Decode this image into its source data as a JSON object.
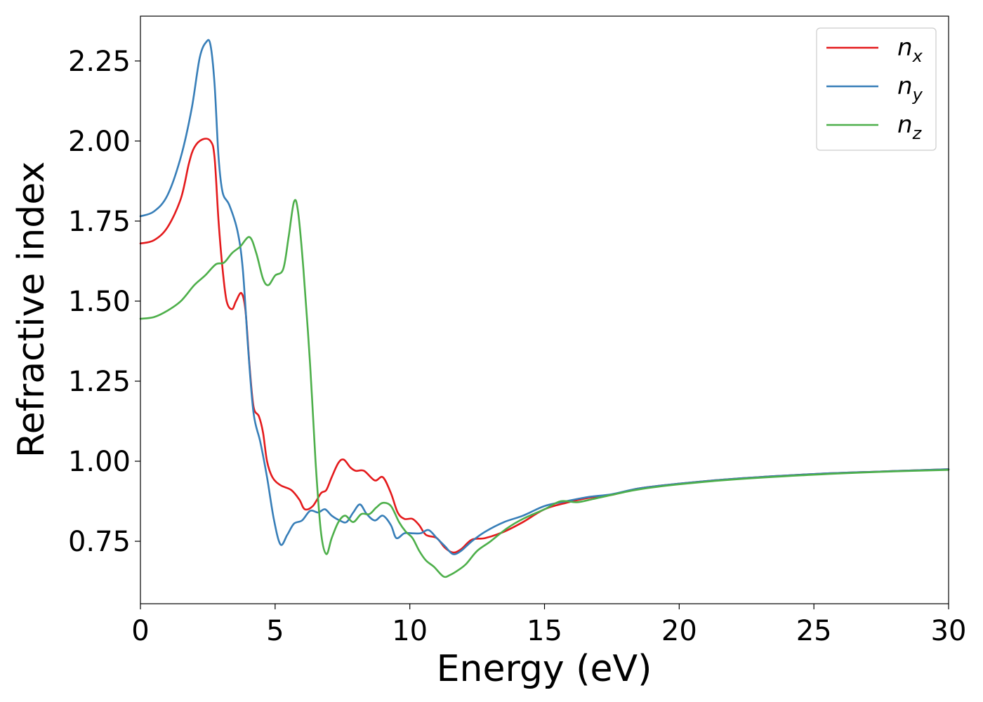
{
  "chart_data": {
    "type": "line",
    "title": "",
    "xlabel": "Energy (eV)",
    "ylabel": "Refractive index",
    "xlim": [
      0,
      30
    ],
    "ylim": [
      0.555,
      2.39
    ],
    "xticks": [
      "0",
      "5",
      "10",
      "15",
      "20",
      "25",
      "30"
    ],
    "yticks": [
      "0.75",
      "1.00",
      "1.25",
      "1.50",
      "1.75",
      "2.00",
      "2.25"
    ],
    "grid": false,
    "legend_position": "top-right",
    "series": [
      {
        "name": "n",
        "subscript": "x",
        "color": "#e41a1c",
        "points": [
          [
            0,
            1.68
          ],
          [
            0.5,
            1.69
          ],
          [
            1,
            1.73
          ],
          [
            1.5,
            1.82
          ],
          [
            1.8,
            1.93
          ],
          [
            2.0,
            1.98
          ],
          [
            2.3,
            2.005
          ],
          [
            2.6,
            2.0
          ],
          [
            2.75,
            1.95
          ],
          [
            2.9,
            1.75
          ],
          [
            3.05,
            1.6
          ],
          [
            3.2,
            1.5
          ],
          [
            3.4,
            1.475
          ],
          [
            3.55,
            1.5
          ],
          [
            3.75,
            1.525
          ],
          [
            3.9,
            1.47
          ],
          [
            4.05,
            1.3
          ],
          [
            4.2,
            1.17
          ],
          [
            4.4,
            1.14
          ],
          [
            4.55,
            1.09
          ],
          [
            4.7,
            1.0
          ],
          [
            4.9,
            0.95
          ],
          [
            5.2,
            0.925
          ],
          [
            5.6,
            0.91
          ],
          [
            5.9,
            0.88
          ],
          [
            6.1,
            0.85
          ],
          [
            6.4,
            0.86
          ],
          [
            6.7,
            0.9
          ],
          [
            6.9,
            0.91
          ],
          [
            7.1,
            0.95
          ],
          [
            7.35,
            0.995
          ],
          [
            7.55,
            1.005
          ],
          [
            7.8,
            0.98
          ],
          [
            8.0,
            0.97
          ],
          [
            8.3,
            0.97
          ],
          [
            8.7,
            0.94
          ],
          [
            9.0,
            0.95
          ],
          [
            9.3,
            0.9
          ],
          [
            9.55,
            0.84
          ],
          [
            9.8,
            0.82
          ],
          [
            10.1,
            0.82
          ],
          [
            10.35,
            0.8
          ],
          [
            10.6,
            0.77
          ],
          [
            11.0,
            0.76
          ],
          [
            11.3,
            0.73
          ],
          [
            11.6,
            0.715
          ],
          [
            11.9,
            0.725
          ],
          [
            12.3,
            0.755
          ],
          [
            12.8,
            0.76
          ],
          [
            13.5,
            0.78
          ],
          [
            14.2,
            0.81
          ],
          [
            15.0,
            0.85
          ],
          [
            15.8,
            0.87
          ],
          [
            16.6,
            0.885
          ],
          [
            17.5,
            0.895
          ],
          [
            18.5,
            0.915
          ],
          [
            20,
            0.93
          ],
          [
            22,
            0.945
          ],
          [
            25,
            0.96
          ],
          [
            27.5,
            0.968
          ],
          [
            30,
            0.975
          ]
        ]
      },
      {
        "name": "n",
        "subscript": "y",
        "color": "#377eb8",
        "points": [
          [
            0,
            1.765
          ],
          [
            0.5,
            1.78
          ],
          [
            1,
            1.83
          ],
          [
            1.5,
            1.95
          ],
          [
            1.9,
            2.1
          ],
          [
            2.2,
            2.26
          ],
          [
            2.45,
            2.31
          ],
          [
            2.6,
            2.3
          ],
          [
            2.75,
            2.18
          ],
          [
            2.9,
            1.95
          ],
          [
            3.05,
            1.84
          ],
          [
            3.3,
            1.8
          ],
          [
            3.6,
            1.72
          ],
          [
            3.8,
            1.6
          ],
          [
            4.0,
            1.35
          ],
          [
            4.2,
            1.15
          ],
          [
            4.45,
            1.06
          ],
          [
            4.7,
            0.95
          ],
          [
            4.95,
            0.82
          ],
          [
            5.2,
            0.74
          ],
          [
            5.45,
            0.77
          ],
          [
            5.7,
            0.805
          ],
          [
            6.0,
            0.815
          ],
          [
            6.3,
            0.845
          ],
          [
            6.6,
            0.84
          ],
          [
            6.85,
            0.85
          ],
          [
            7.1,
            0.83
          ],
          [
            7.4,
            0.815
          ],
          [
            7.65,
            0.81
          ],
          [
            7.9,
            0.84
          ],
          [
            8.15,
            0.865
          ],
          [
            8.4,
            0.835
          ],
          [
            8.7,
            0.815
          ],
          [
            9.0,
            0.83
          ],
          [
            9.3,
            0.8
          ],
          [
            9.5,
            0.76
          ],
          [
            9.8,
            0.775
          ],
          [
            10.1,
            0.775
          ],
          [
            10.4,
            0.775
          ],
          [
            10.7,
            0.785
          ],
          [
            11.0,
            0.76
          ],
          [
            11.3,
            0.735
          ],
          [
            11.6,
            0.71
          ],
          [
            11.9,
            0.72
          ],
          [
            12.3,
            0.75
          ],
          [
            12.8,
            0.78
          ],
          [
            13.5,
            0.81
          ],
          [
            14.2,
            0.83
          ],
          [
            15.0,
            0.86
          ],
          [
            15.8,
            0.875
          ],
          [
            16.6,
            0.888
          ],
          [
            17.5,
            0.897
          ],
          [
            18.5,
            0.915
          ],
          [
            20,
            0.93
          ],
          [
            22,
            0.945
          ],
          [
            25,
            0.96
          ],
          [
            27.5,
            0.968
          ],
          [
            30,
            0.975
          ]
        ]
      },
      {
        "name": "n",
        "subscript": "z",
        "color": "#4daf4a",
        "points": [
          [
            0,
            1.445
          ],
          [
            0.5,
            1.45
          ],
          [
            1.0,
            1.47
          ],
          [
            1.5,
            1.5
          ],
          [
            2.0,
            1.55
          ],
          [
            2.4,
            1.58
          ],
          [
            2.8,
            1.615
          ],
          [
            3.1,
            1.62
          ],
          [
            3.4,
            1.65
          ],
          [
            3.7,
            1.67
          ],
          [
            4.05,
            1.7
          ],
          [
            4.3,
            1.65
          ],
          [
            4.55,
            1.57
          ],
          [
            4.75,
            1.55
          ],
          [
            5.0,
            1.58
          ],
          [
            5.3,
            1.6
          ],
          [
            5.5,
            1.7
          ],
          [
            5.7,
            1.81
          ],
          [
            5.85,
            1.78
          ],
          [
            6.05,
            1.6
          ],
          [
            6.3,
            1.3
          ],
          [
            6.5,
            1.0
          ],
          [
            6.7,
            0.78
          ],
          [
            6.9,
            0.71
          ],
          [
            7.1,
            0.76
          ],
          [
            7.35,
            0.81
          ],
          [
            7.6,
            0.83
          ],
          [
            7.9,
            0.81
          ],
          [
            8.2,
            0.835
          ],
          [
            8.5,
            0.835
          ],
          [
            8.75,
            0.855
          ],
          [
            9.0,
            0.87
          ],
          [
            9.3,
            0.86
          ],
          [
            9.6,
            0.81
          ],
          [
            9.85,
            0.78
          ],
          [
            10.1,
            0.76
          ],
          [
            10.35,
            0.72
          ],
          [
            10.6,
            0.69
          ],
          [
            10.9,
            0.67
          ],
          [
            11.25,
            0.64
          ],
          [
            11.5,
            0.645
          ],
          [
            11.8,
            0.66
          ],
          [
            12.1,
            0.68
          ],
          [
            12.5,
            0.72
          ],
          [
            13.0,
            0.75
          ],
          [
            13.6,
            0.79
          ],
          [
            14.2,
            0.82
          ],
          [
            15.0,
            0.85
          ],
          [
            15.6,
            0.875
          ],
          [
            16.2,
            0.872
          ],
          [
            16.8,
            0.882
          ],
          [
            17.5,
            0.895
          ],
          [
            18.5,
            0.912
          ],
          [
            20,
            0.928
          ],
          [
            22,
            0.943
          ],
          [
            25,
            0.958
          ],
          [
            27.5,
            0.967
          ],
          [
            30,
            0.973
          ]
        ]
      }
    ]
  }
}
